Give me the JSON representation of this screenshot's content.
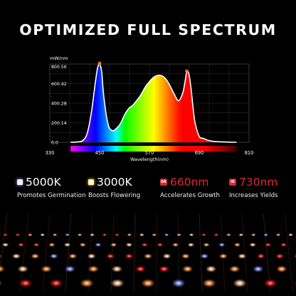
{
  "headline": "OPTIMIZED FULL SPECTRUM",
  "chart_data": {
    "type": "line",
    "title": "",
    "ylabel": "mW/nm",
    "xlabel": "Wavelength(nm)",
    "xlim": [
      330,
      810
    ],
    "ylim": [
      0,
      800.56
    ],
    "y_ticks": [
      "800.56",
      "600.42",
      "400.28",
      "200.14",
      "0.0"
    ],
    "x_ticks": [
      "330",
      "450",
      "570",
      "690",
      "810"
    ],
    "series": [
      {
        "x": [
          380,
          400,
          410,
          420,
          430,
          440,
          445,
          450,
          455,
          460,
          470,
          480,
          490,
          500,
          510,
          520,
          530,
          540,
          550,
          560,
          570,
          580,
          590,
          600,
          610,
          620,
          630,
          640,
          650,
          655,
          660,
          665,
          670,
          675,
          680,
          690,
          700,
          710,
          720,
          730,
          740,
          760,
          780
        ],
        "y": [
          0,
          5,
          20,
          90,
          300,
          620,
          760,
          800,
          720,
          470,
          190,
          120,
          140,
          190,
          280,
          345,
          380,
          430,
          490,
          565,
          620,
          665,
          685,
          680,
          645,
          575,
          490,
          425,
          500,
          600,
          720,
          700,
          560,
          360,
          200,
          60,
          40,
          22,
          12,
          8,
          5,
          2,
          0
        ]
      }
    ],
    "peak_markers": [
      {
        "x": 450,
        "y": 800,
        "color": "#f07820"
      },
      {
        "x": 660,
        "y": 720,
        "color": "#f07820"
      }
    ],
    "grid": true
  },
  "features": [
    {
      "value": "5000K",
      "caption": "Promotes Germination",
      "icon": "white-square-icon",
      "icon_color": "#eef0ff",
      "value_color": "#ffffff"
    },
    {
      "value": "3000K",
      "caption": "Boosts Flowering",
      "icon": "warm-square-icon",
      "icon_color": "#fff3b8",
      "value_color": "#ffffff"
    },
    {
      "value": "660nm",
      "caption": "Accelerates Growth",
      "icon": "dr-badge-icon",
      "badge_text": "DR",
      "value_color": "#e0262c"
    },
    {
      "value": "730nm",
      "caption": "Increases Yields",
      "icon": "ir-badge-icon",
      "badge_text": "IR",
      "value_color": "#e0262c"
    }
  ]
}
